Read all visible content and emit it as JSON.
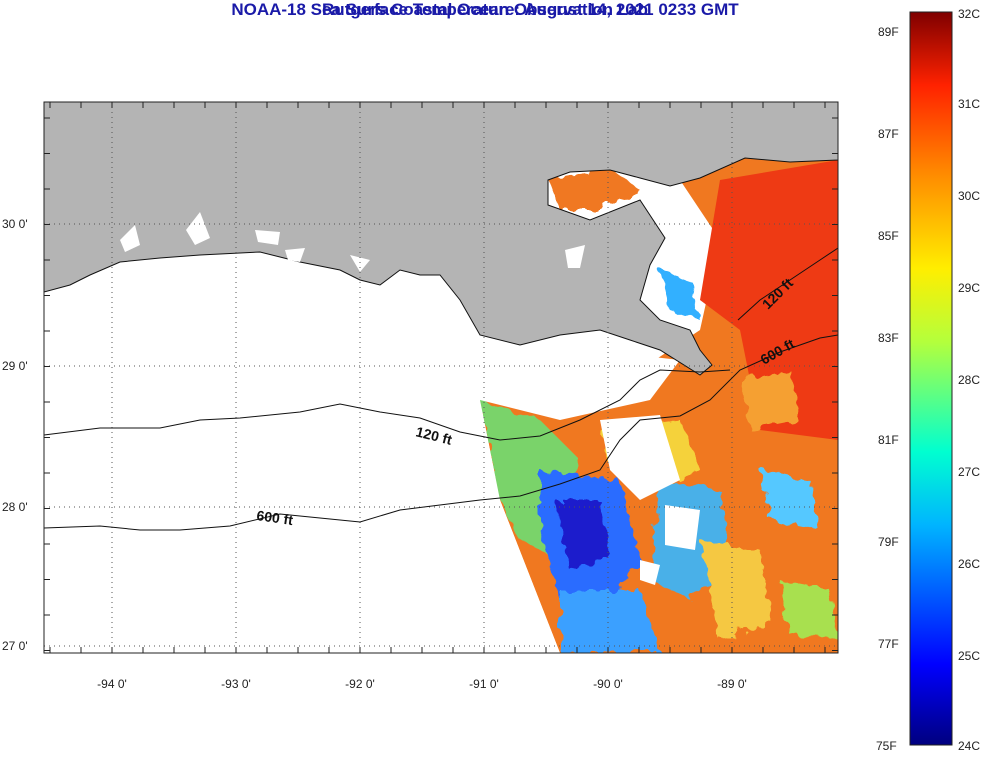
{
  "title": "NOAA-18 Sea Surface Temperature:  August 14, 2021 0233 GMT",
  "subtitle": "Rutgers Coastal Ocean Observation Lab",
  "map": {
    "lon_ticks": [
      "-94 0'",
      "-93 0'",
      "-92 0'",
      "-91 0'",
      "-90 0'",
      "-89 0'"
    ],
    "lat_ticks": [
      "30 0'",
      "29 0'",
      "28 0'",
      "27 0'"
    ],
    "contours": [
      {
        "label": "120 ft"
      },
      {
        "label": "600 ft"
      },
      {
        "label": "120 ft"
      },
      {
        "label": "600 ft"
      }
    ],
    "colors": {
      "land": "#b4b4b4",
      "water_nodata": "#ffffff"
    }
  },
  "colorbar": {
    "fahrenheit": [
      "89F",
      "87F",
      "85F",
      "83F",
      "81F",
      "79F",
      "77F",
      "75F"
    ],
    "celsius": [
      "32C",
      "31C",
      "30C",
      "29C",
      "28C",
      "27C",
      "26C",
      "25C",
      "24C"
    ],
    "range_c": [
      24,
      32
    ]
  }
}
